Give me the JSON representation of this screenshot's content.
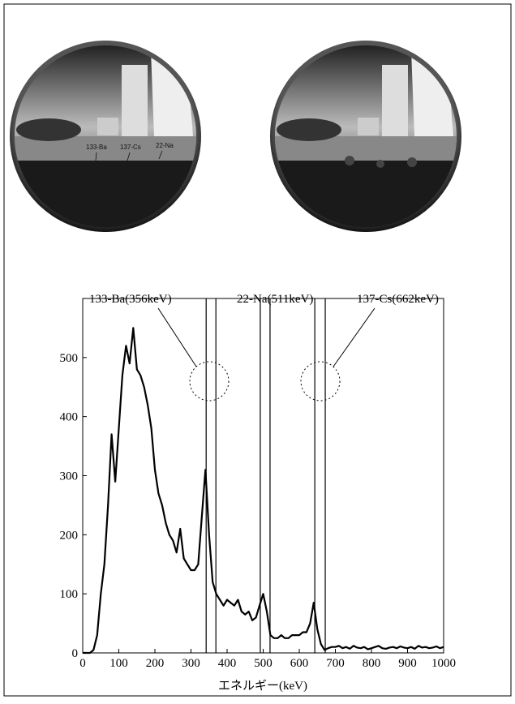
{
  "photos": {
    "labels": [
      "133-Ba",
      "137-Cs",
      "22-Na"
    ]
  },
  "chart_data": {
    "type": "line",
    "x": [
      0,
      10,
      20,
      30,
      40,
      50,
      60,
      70,
      80,
      90,
      100,
      110,
      120,
      130,
      140,
      150,
      160,
      170,
      180,
      190,
      200,
      210,
      220,
      230,
      240,
      250,
      260,
      270,
      280,
      290,
      300,
      310,
      320,
      330,
      340,
      350,
      360,
      370,
      380,
      390,
      400,
      410,
      420,
      430,
      440,
      450,
      460,
      470,
      480,
      490,
      500,
      510,
      520,
      530,
      540,
      550,
      560,
      570,
      580,
      590,
      600,
      610,
      620,
      630,
      640,
      650,
      660,
      670,
      680,
      690,
      700,
      710,
      720,
      730,
      740,
      750,
      760,
      770,
      780,
      790,
      800,
      810,
      820,
      830,
      840,
      850,
      860,
      870,
      880,
      890,
      900,
      910,
      920,
      930,
      940,
      950,
      960,
      970,
      980,
      990,
      1000
    ],
    "values": [
      0,
      0,
      0,
      5,
      30,
      100,
      150,
      250,
      370,
      290,
      380,
      470,
      520,
      490,
      550,
      480,
      470,
      450,
      420,
      380,
      310,
      270,
      250,
      220,
      200,
      190,
      170,
      210,
      160,
      150,
      140,
      140,
      150,
      230,
      310,
      200,
      120,
      100,
      90,
      80,
      90,
      85,
      80,
      90,
      70,
      65,
      70,
      55,
      60,
      80,
      100,
      70,
      30,
      25,
      25,
      30,
      25,
      25,
      30,
      30,
      30,
      35,
      35,
      50,
      85,
      40,
      15,
      5,
      8,
      10,
      10,
      12,
      8,
      10,
      7,
      12,
      9,
      8,
      10,
      6,
      8,
      10,
      12,
      8,
      7,
      9,
      10,
      8,
      11,
      9,
      8,
      10,
      7,
      12,
      9,
      10,
      8,
      9,
      11,
      8,
      10
    ],
    "color": "#000000",
    "windows": [
      [
        342,
        369
      ],
      [
        492,
        519
      ],
      [
        643,
        672
      ]
    ],
    "annotations": [
      "133-Ba(356keV)",
      "22-Na(511keV)",
      "137-Cs(662keV)"
    ],
    "xlabel": "エネルギー(keV)",
    "xlim": [
      0,
      1000
    ],
    "ylim": [
      0,
      600
    ],
    "xticks": [
      0,
      100,
      200,
      300,
      400,
      500,
      600,
      700,
      800,
      900,
      1000
    ],
    "yticks": [
      0,
      100,
      200,
      300,
      400,
      500
    ]
  }
}
